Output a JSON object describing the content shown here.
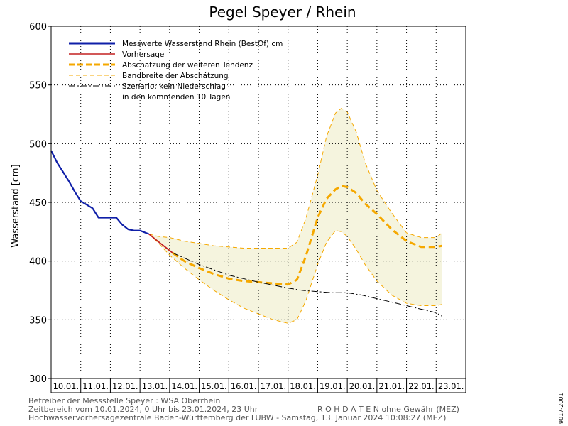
{
  "chart_data": {
    "type": "line",
    "title": "Pegel Speyer / Rhein",
    "ylabel": "Wasserstand [cm]",
    "ylim": [
      300,
      600
    ],
    "yticks": [
      300,
      350,
      400,
      450,
      500,
      550,
      600
    ],
    "xlim": [
      0,
      14
    ],
    "x_unit": "days from 10.01.2024 00:00",
    "xtick_labels": [
      "10.01.",
      "11.01.",
      "12.01.",
      "13.01.",
      "14.01.",
      "15.01.",
      "16.01.",
      "17.01.",
      "18.01.",
      "19.01.",
      "20.01.",
      "21.01.",
      "22.01.",
      "23.01."
    ],
    "grid": true,
    "legend_position": "top-left",
    "legend": [
      {
        "key": "measured",
        "label": "Messwerte Wasserstand Rhein (BestOf)  cm"
      },
      {
        "key": "forecast",
        "label": "Vorhersage"
      },
      {
        "key": "tendency",
        "label": "Abschätzung der weiteren Tendenz"
      },
      {
        "key": "band",
        "label": "Bandbreite der Abschätzung"
      },
      {
        "key": "scenario",
        "label": "Szenario: kein Niederschlag"
      },
      {
        "key": "scenario2",
        "label": "in den kommenden 10 Tagen"
      }
    ],
    "series": [
      {
        "key": "measured",
        "name": "Messwerte Wasserstand Rhein (BestOf)  cm",
        "color": "#0f1fa8",
        "style": "solid",
        "x": [
          0,
          0.2,
          0.4,
          0.6,
          0.8,
          1.0,
          1.2,
          1.4,
          1.6,
          1.8,
          2.0,
          2.2,
          2.4,
          2.6,
          2.8,
          3.0,
          3.2,
          3.3
        ],
        "y": [
          494,
          484,
          476,
          468,
          459,
          451,
          448,
          445,
          437,
          437,
          437,
          437,
          431,
          427,
          426,
          426,
          424,
          423
        ]
      },
      {
        "key": "forecast",
        "name": "Vorhersage",
        "color": "#c42020",
        "style": "solid",
        "x": [
          3.3,
          3.5,
          3.7,
          3.9,
          4.1
        ],
        "y": [
          423,
          419,
          415,
          411,
          407
        ]
      },
      {
        "key": "tendency",
        "name": "Abschätzung der weiteren Tendenz",
        "color": "#f5a800",
        "style": "dashed",
        "x": [
          4.1,
          4.5,
          5.0,
          5.5,
          6.0,
          6.5,
          7.0,
          7.5,
          8.0,
          8.3,
          8.6,
          9.0,
          9.3,
          9.6,
          9.8,
          10.0,
          10.3,
          10.6,
          11.0,
          11.5,
          12.0,
          12.5,
          13.0,
          13.2
        ],
        "y": [
          407,
          400,
          394,
          389,
          385,
          383,
          382,
          381,
          380,
          384,
          404,
          437,
          453,
          461,
          464,
          463,
          458,
          449,
          440,
          427,
          417,
          412,
          412,
          413
        ]
      },
      {
        "key": "scenario",
        "name": "Szenario: kein Niederschlag",
        "color": "#000000",
        "style": "dashdot",
        "x": [
          4.1,
          5.0,
          6.0,
          7.0,
          8.0,
          8.5,
          9.0,
          9.5,
          10.0,
          10.5,
          11.0,
          11.5,
          12.0,
          12.5,
          13.0,
          13.2
        ],
        "y": [
          407,
          397,
          388,
          382,
          377,
          375,
          374,
          373,
          373,
          371,
          368,
          365,
          362,
          359,
          356,
          353
        ]
      }
    ],
    "band": {
      "key": "band",
      "name": "Bandbreite der Abschätzung",
      "fill": "#f5f4de",
      "edge": "#f5a800",
      "x": [
        3.3,
        3.6,
        4.0,
        4.5,
        5.0,
        5.5,
        6.0,
        6.5,
        7.0,
        7.5,
        8.0,
        8.3,
        8.6,
        9.0,
        9.3,
        9.6,
        9.8,
        10.0,
        10.3,
        10.6,
        11.0,
        11.5,
        12.0,
        12.5,
        13.0,
        13.2
      ],
      "upper": [
        423,
        421,
        420,
        417,
        415,
        413,
        412,
        411,
        411,
        411,
        411,
        416,
        436,
        473,
        506,
        526,
        530,
        527,
        510,
        484,
        460,
        441,
        424,
        420,
        420,
        424
      ],
      "lower": [
        423,
        416,
        405,
        394,
        384,
        375,
        367,
        360,
        355,
        350,
        347,
        350,
        366,
        397,
        416,
        426,
        425,
        421,
        410,
        397,
        383,
        371,
        364,
        362,
        362,
        363
      ]
    }
  },
  "footer": {
    "line1": "Betreiber der Messstelle Speyer : WSA Oberrhein",
    "line2": "Zeitbereich vom 10.01.2024, 0 Uhr bis 23.01.2024, 23 Uhr",
    "line2b": "R O H D A T E N  ohne Gewähr (MEZ)",
    "line3": "Hochwasservorhersagezentrale Baden-Württemberg der LUBW - Samstag, 13. Januar 2024 10:08:27 (MEZ)"
  },
  "side_code": "9017-2001"
}
